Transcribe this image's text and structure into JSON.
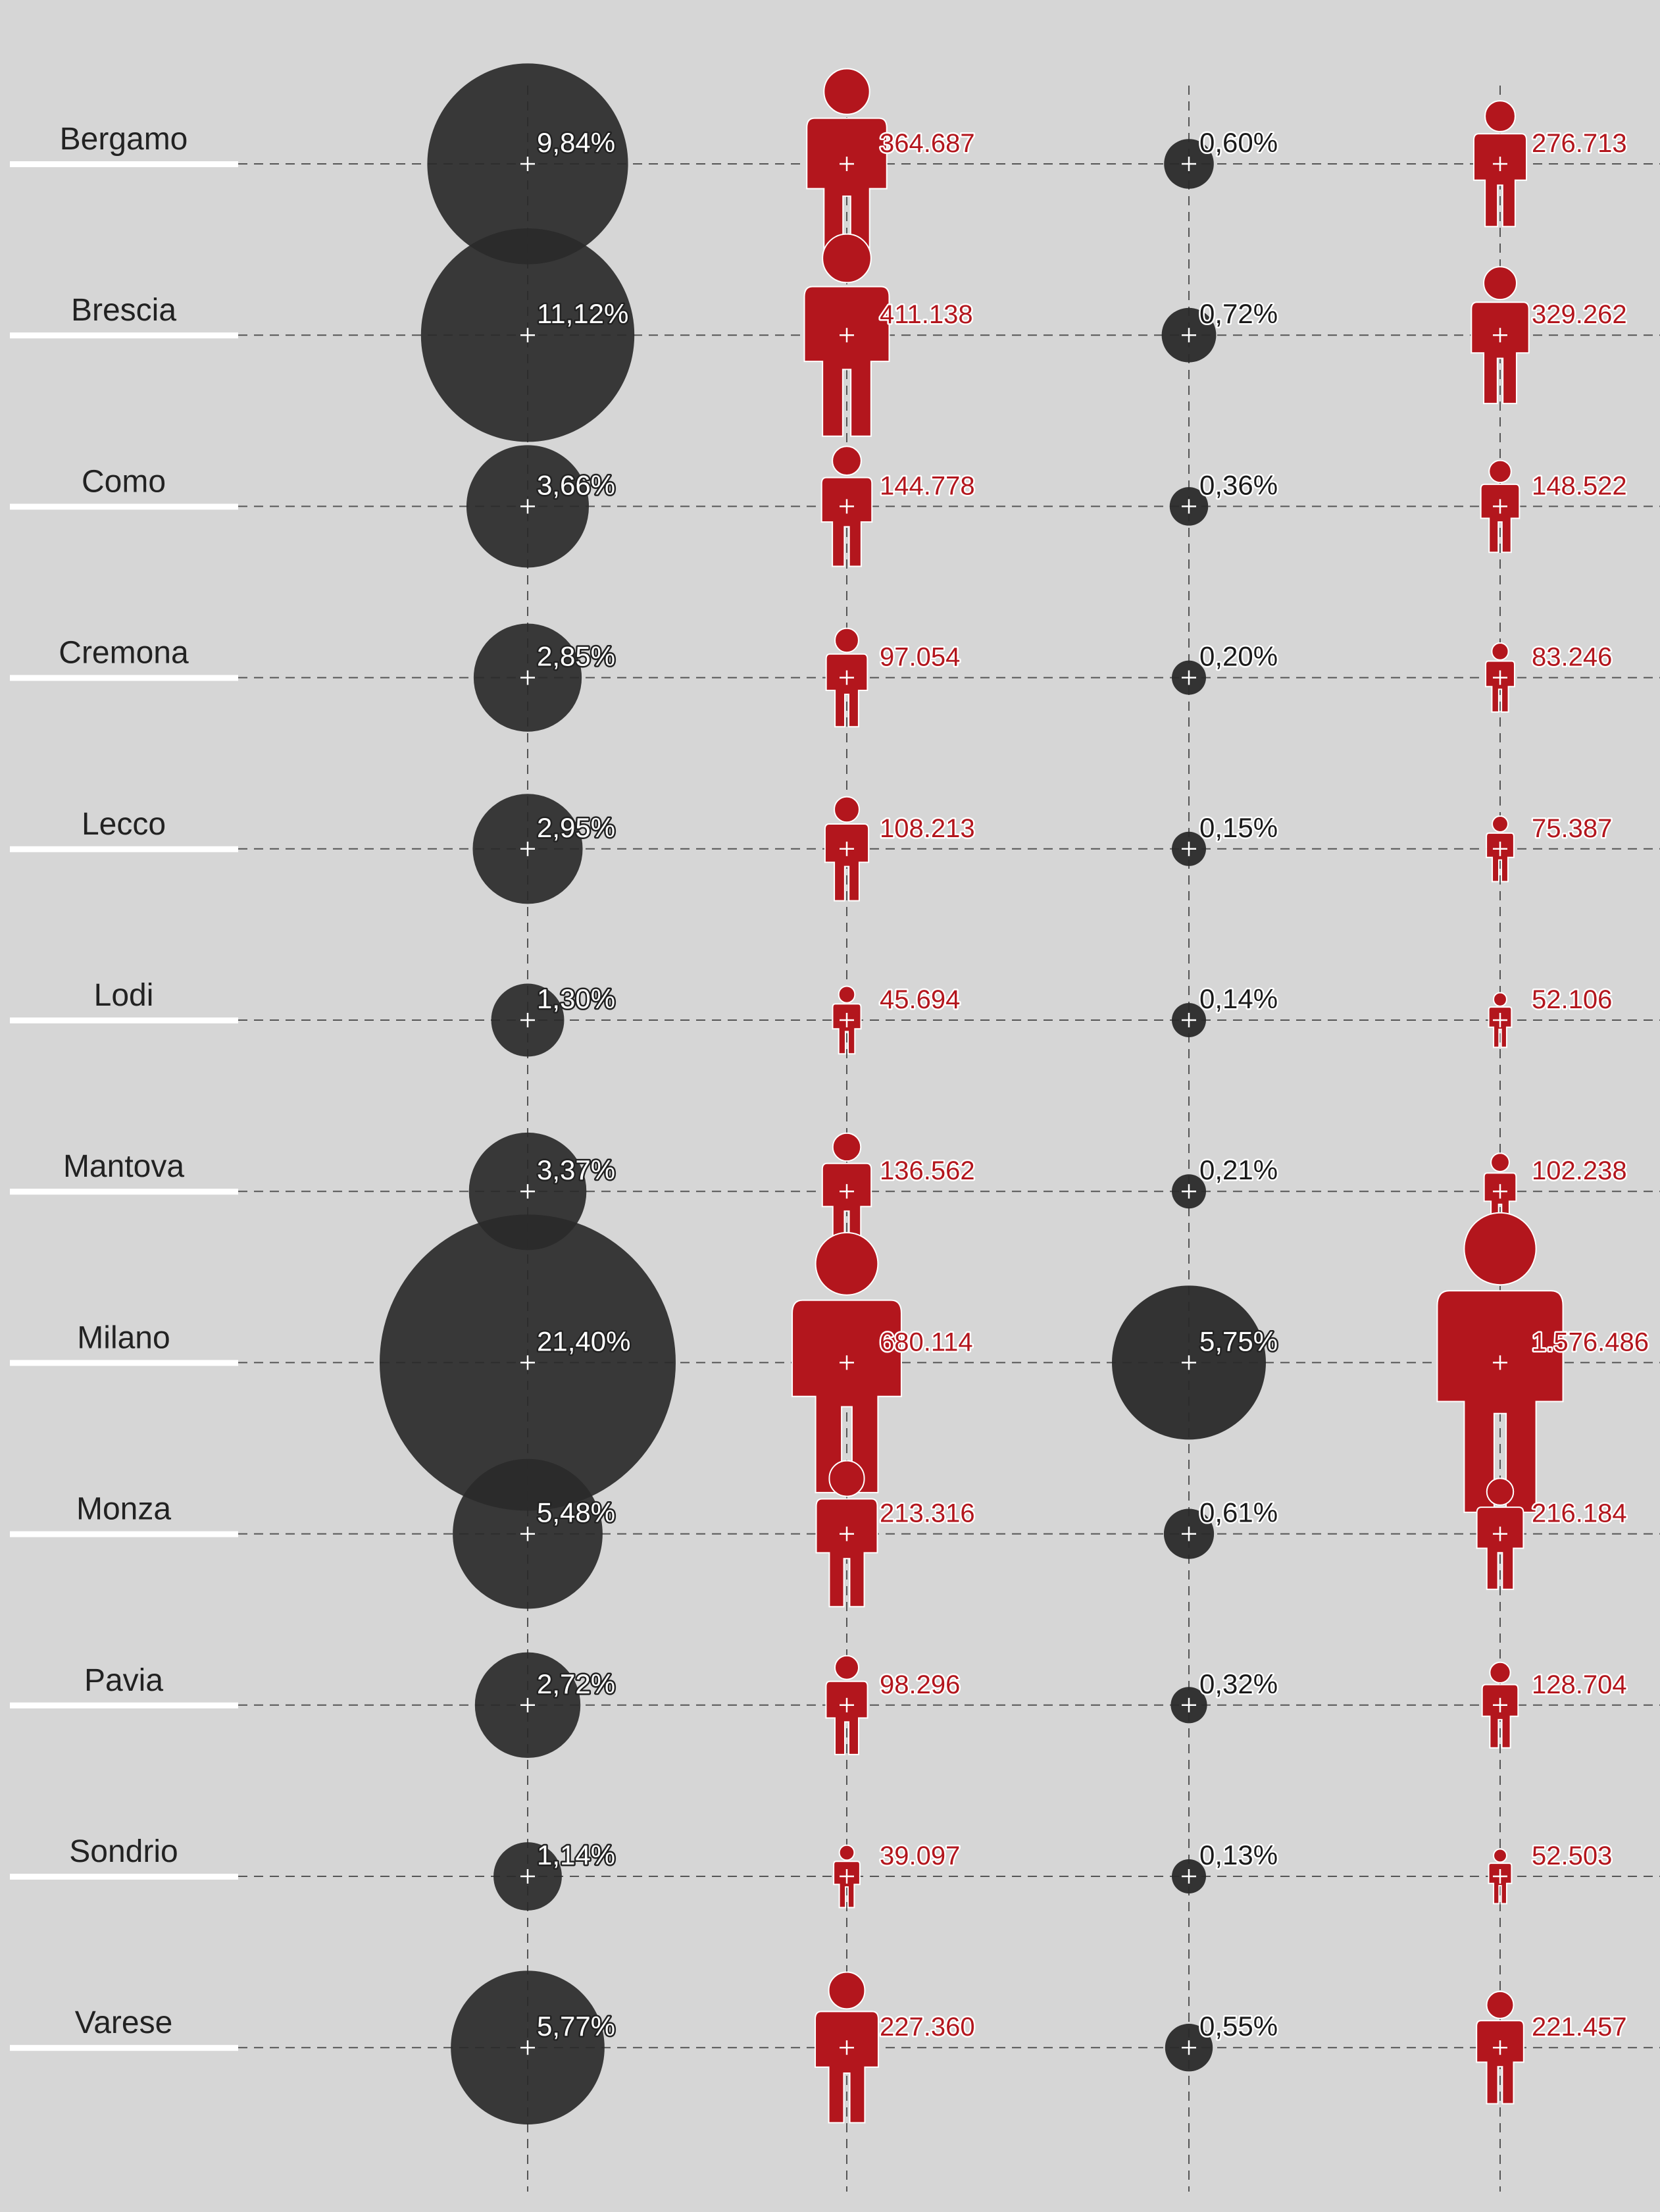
{
  "colors": {
    "background": "#d6d6d6",
    "circle": "#2a2a2a",
    "figure": "#b3161d",
    "underline": "#ffffff",
    "gridline": "#555555"
  },
  "chart_data": {
    "type": "table",
    "columns": [
      {
        "mark": "circle",
        "unit": "percent"
      },
      {
        "mark": "person-icon",
        "unit": "count"
      },
      {
        "mark": "circle",
        "unit": "percent"
      },
      {
        "mark": "person-icon",
        "unit": "count"
      }
    ],
    "rows": [
      {
        "province": "Bergamo",
        "c1_label": "9,84%",
        "c1": 9.84,
        "c2_label": "364.687",
        "c2": 364687,
        "c3_label": "0,60%",
        "c3": 0.6,
        "c4_label": "276.713",
        "c4": 276713
      },
      {
        "province": "Brescia",
        "c1_label": "11,12%",
        "c1": 11.12,
        "c2_label": "411.138",
        "c2": 411138,
        "c3_label": "0,72%",
        "c3": 0.72,
        "c4_label": "329.262",
        "c4": 329262
      },
      {
        "province": "Como",
        "c1_label": "3,66%",
        "c1": 3.66,
        "c2_label": "144.778",
        "c2": 144778,
        "c3_label": "0,36%",
        "c3": 0.36,
        "c4_label": "148.522",
        "c4": 148522
      },
      {
        "province": "Cremona",
        "c1_label": "2,85%",
        "c1": 2.85,
        "c2_label": "97.054",
        "c2": 97054,
        "c3_label": "0,20%",
        "c3": 0.2,
        "c4_label": "83.246",
        "c4": 83246
      },
      {
        "province": "Lecco",
        "c1_label": "2,95%",
        "c1": 2.95,
        "c2_label": "108.213",
        "c2": 108213,
        "c3_label": "0,15%",
        "c3": 0.15,
        "c4_label": "75.387",
        "c4": 75387
      },
      {
        "province": "Lodi",
        "c1_label": "1,30%",
        "c1": 1.3,
        "c2_label": "45.694",
        "c2": 45694,
        "c3_label": "0,14%",
        "c3": 0.14,
        "c4_label": "52.106",
        "c4": 52106
      },
      {
        "province": "Mantova",
        "c1_label": "3,37%",
        "c1": 3.37,
        "c2_label": "136.562",
        "c2": 136562,
        "c3_label": "0,21%",
        "c3": 0.21,
        "c4_label": "102.238",
        "c4": 102238
      },
      {
        "province": "Milano",
        "c1_label": "21,40%",
        "c1": 21.4,
        "c2_label": "680.114",
        "c2": 680114,
        "c3_label": "5,75%",
        "c3": 5.75,
        "c4_label": "1.576.486",
        "c4": 1576486
      },
      {
        "province": "Monza",
        "c1_label": "5,48%",
        "c1": 5.48,
        "c2_label": "213.316",
        "c2": 213316,
        "c3_label": "0,61%",
        "c3": 0.61,
        "c4_label": "216.184",
        "c4": 216184
      },
      {
        "province": "Pavia",
        "c1_label": "2,72%",
        "c1": 2.72,
        "c2_label": "98.296",
        "c2": 98296,
        "c3_label": "0,32%",
        "c3": 0.32,
        "c4_label": "128.704",
        "c4": 128704
      },
      {
        "province": "Sondrio",
        "c1_label": "1,14%",
        "c1": 1.14,
        "c2_label": "39.097",
        "c2": 39097,
        "c3_label": "0,13%",
        "c3": 0.13,
        "c4_label": "52.503",
        "c4": 52503
      },
      {
        "province": "Varese",
        "c1_label": "5,77%",
        "c1": 5.77,
        "c2_label": "227.360",
        "c2": 227360,
        "c3_label": "0,55%",
        "c3": 0.55,
        "c4_label": "221.457",
        "c4": 221457
      }
    ]
  }
}
